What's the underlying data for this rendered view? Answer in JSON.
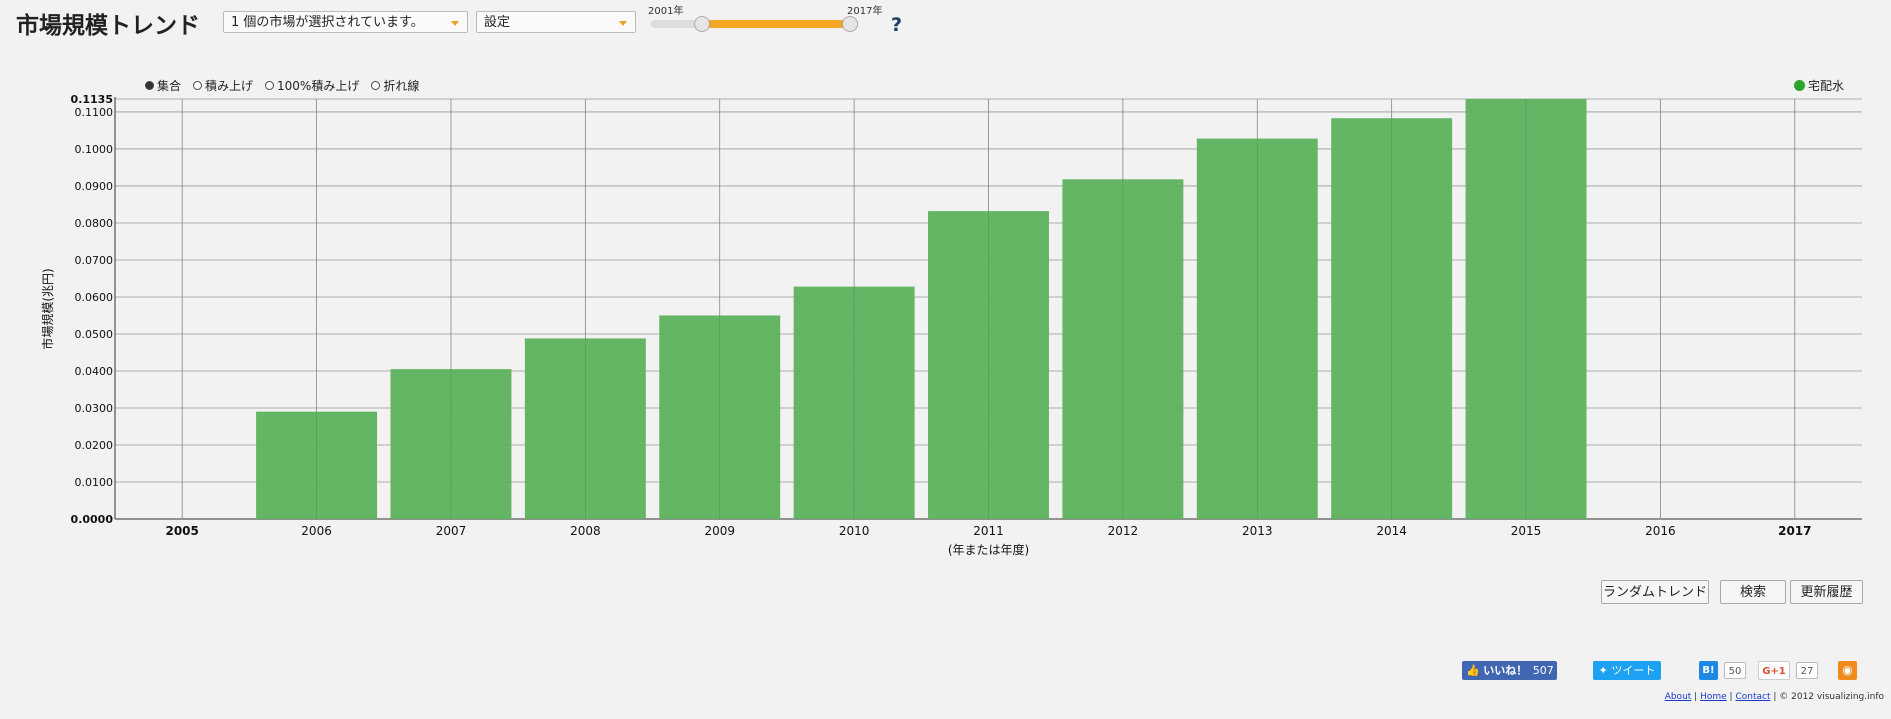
{
  "header": {
    "title": "市場規模トレンド",
    "market_select": "1 個の市場が選択されています。",
    "settings_select": "設定",
    "range_start_label": "2001年",
    "range_end_label": "2017年",
    "help": "?"
  },
  "modes": [
    {
      "label": "集合",
      "selected": true
    },
    {
      "label": "積み上げ",
      "selected": false
    },
    {
      "label": "100%積み上げ",
      "selected": false
    },
    {
      "label": "折れ線",
      "selected": false
    }
  ],
  "legend": {
    "label": "宅配水",
    "color": "#2ba52b"
  },
  "buttons": {
    "random": "ランダムトレンド",
    "search": "検索",
    "history": "更新履歴"
  },
  "social": {
    "like": "いいね！",
    "like_count": "507",
    "tweet": "ツイート",
    "hatena": "B!",
    "hatena_count": "50",
    "gplus": "G+1",
    "gplus_count": "27"
  },
  "footer": {
    "about": "About",
    "home": "Home",
    "contact": "Contact",
    "copyright": "| © 2012 visualizing.info",
    "sep": "|"
  },
  "chart_data": {
    "type": "bar",
    "categories": [
      "2005",
      "2006",
      "2007",
      "2008",
      "2009",
      "2010",
      "2011",
      "2012",
      "2013",
      "2014",
      "2015",
      "2016",
      "2017"
    ],
    "series": [
      {
        "name": "宅配水",
        "color": "#5cb25c",
        "values": [
          null,
          0.029,
          0.0405,
          0.0488,
          0.055,
          0.0628,
          0.0832,
          0.0918,
          0.1028,
          0.1083,
          0.1135,
          null,
          null
        ]
      }
    ],
    "ylabel": "市場規模(兆円)",
    "xlabel": "(年または年度)",
    "ylim": [
      0,
      0.1135
    ],
    "yticks": [
      "0.0000",
      "0.0100",
      "0.0200",
      "0.0300",
      "0.0400",
      "0.0500",
      "0.0600",
      "0.0700",
      "0.0800",
      "0.0900",
      "0.1000",
      "0.1100",
      "0.1135"
    ],
    "grid": true
  }
}
